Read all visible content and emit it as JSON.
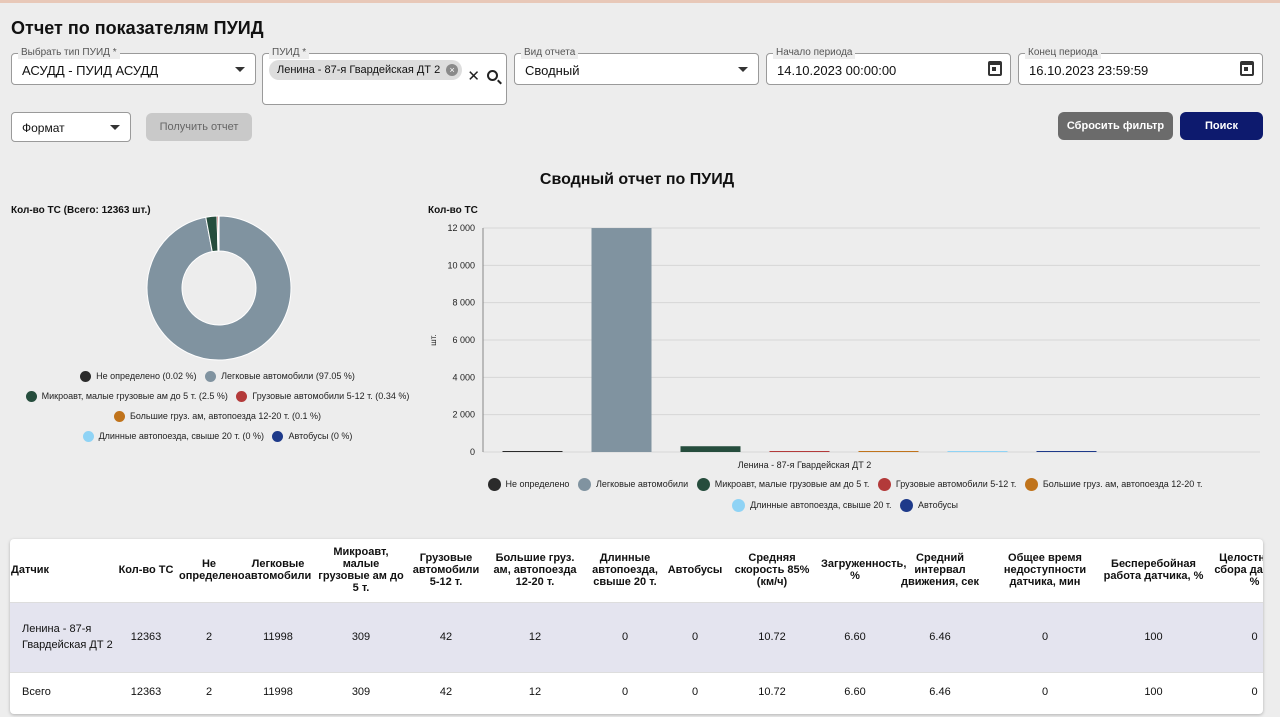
{
  "title": "Отчет по показателям ПУИД",
  "filters": {
    "type": {
      "label": "Выбрать тип ПУИД *",
      "value": "АСУДД - ПУИД АСУДД"
    },
    "puid": {
      "label": "ПУИД *",
      "chip": "Ленина - 87-я Гвардейская ДТ 2"
    },
    "report_kind": {
      "label": "Вид отчета",
      "value": "Сводный"
    },
    "start": {
      "label": "Начало периода",
      "value": "14.10.2023 00:00:00"
    },
    "end": {
      "label": "Конец периода",
      "value": "16.10.2023 23:59:59"
    }
  },
  "toolbar": {
    "format_label": "Формат",
    "get_report": "Получить отчет",
    "reset": "Сбросить фильтр",
    "search": "Поиск"
  },
  "report_title": "Сводный отчет по ПУИД",
  "donut_label": "Кол-во ТС (Всего: 12363 шт.)",
  "bar_label": "Кол-во ТС",
  "categories": [
    {
      "name": "Не определено",
      "color": "#2b2b2b"
    },
    {
      "name": "Легковые автомобили",
      "color": "#8093a0"
    },
    {
      "name": "Микроавт, малые грузовые ам до 5 т.",
      "color": "#264d3d"
    },
    {
      "name": "Грузовые автомобили 5-12 т.",
      "color": "#b33a3a"
    },
    {
      "name": "Большие груз. ам, автопоезда 12-20 т.",
      "color": "#c0731b"
    },
    {
      "name": "Длинные автопоезда, свыше 20 т.",
      "color": "#8fd3f5"
    },
    {
      "name": "Автобусы",
      "color": "#1e3a8a"
    }
  ],
  "donut_legend": [
    "Не определено (0.02 %)",
    "Легковые автомобили (97.05 %)",
    "Микроавт, малые грузовые ам до 5 т. (2.5 %)",
    "Грузовые автомобили 5-12 т. (0.34 %)",
    "Большие груз. ам, автопоезда 12-20 т. (0.1 %)",
    "Длинные автопоезда, свыше 20 т. (0 %)",
    "Автобусы (0 %)"
  ],
  "chart_data": [
    {
      "type": "pie",
      "title": "Кол-во ТС (Всего: 12363 шт.)",
      "categories": [
        "Не определено",
        "Легковые автомобили",
        "Микроавт, малые грузовые ам до 5 т.",
        "Грузовые автомобили 5-12 т.",
        "Большие груз. ам, автопоезда 12-20 т.",
        "Длинные автопоезда, свыше 20 т.",
        "Автобусы"
      ],
      "values": [
        0.02,
        97.05,
        2.5,
        0.34,
        0.1,
        0,
        0
      ],
      "legend": "bottom"
    },
    {
      "type": "bar",
      "title": "Кол-во ТС",
      "ylabel": "шт.",
      "xlabel": "Ленина - 87-я Гвардейская ДТ 2",
      "categories": [
        "Ленина - 87-я Гвардейская ДТ 2"
      ],
      "series": [
        {
          "name": "Не определено",
          "values": [
            2
          ]
        },
        {
          "name": "Легковые автомобили",
          "values": [
            11998
          ]
        },
        {
          "name": "Микроавт, малые грузовые ам до 5 т.",
          "values": [
            309
          ]
        },
        {
          "name": "Грузовые автомобили 5-12 т.",
          "values": [
            42
          ]
        },
        {
          "name": "Большие груз. ам, автопоезда 12-20 т.",
          "values": [
            12
          ]
        },
        {
          "name": "Длинные автопоезда, свыше 20 т.",
          "values": [
            0
          ]
        },
        {
          "name": "Автобусы",
          "values": [
            0
          ]
        }
      ],
      "ylim": [
        0,
        12000
      ],
      "yticks": [
        "0",
        "2 000",
        "4 000",
        "6 000",
        "8 000",
        "10 000",
        "12 000"
      ],
      "grid": true,
      "legend": "bottom"
    }
  ],
  "table": {
    "columns": [
      "Датчик",
      "Кол-во ТС",
      "Не определено",
      "Легковые автомобили",
      "Микроавт, малые грузовые ам до 5 т.",
      "Грузовые автомобили 5-12 т.",
      "Большие груз. ам, автопоезда 12-20 т.",
      "Длинные автопоезда, свыше 20 т.",
      "Автобусы",
      "Средняя скорость 85% (км/ч)",
      "Загруженность, %",
      "Средний интервал движения, сек",
      "Общее время недоступности датчика, мин",
      "Бесперебойная работа датчика, %",
      "Целостность сбора данных, %"
    ],
    "rows": [
      [
        "Ленина - 87-я Гвардейская ДТ 2",
        "12363",
        "2",
        "11998",
        "309",
        "42",
        "12",
        "0",
        "0",
        "10.72",
        "6.60",
        "6.46",
        "0",
        "100",
        "0"
      ],
      [
        "Всего",
        "12363",
        "2",
        "11998",
        "309",
        "42",
        "12",
        "0",
        "0",
        "10.72",
        "6.60",
        "6.46",
        "0",
        "100",
        "0"
      ]
    ]
  }
}
